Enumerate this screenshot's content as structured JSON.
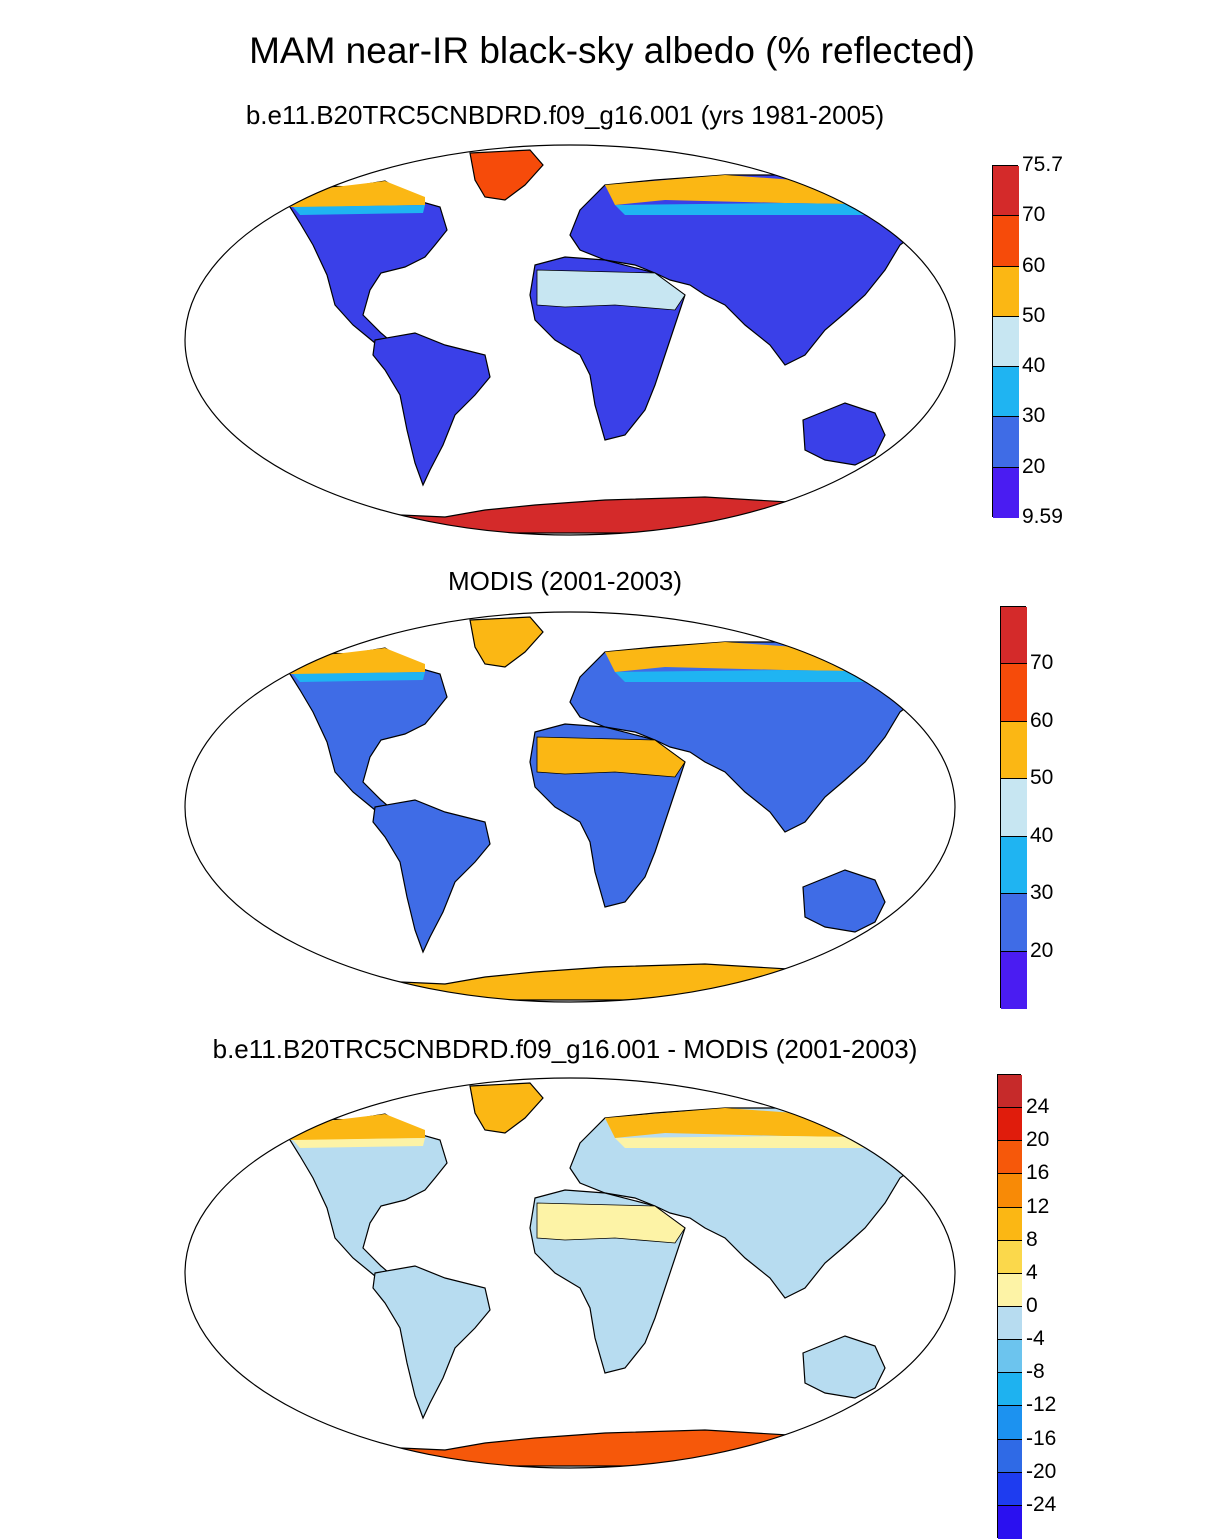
{
  "title": "MAM near-IR black-sky albedo (% reflected)",
  "panels": [
    {
      "title": "b.e11.B20TRC5CNBDRD.f09_g16.001 (yrs 1981-2005)",
      "colorbar": {
        "colors": [
          "#4a1cf2",
          "#3f6ce6",
          "#1fb4f2",
          "#c7e6f2",
          "#fbb714",
          "#f64b0a",
          "#d42a2a"
        ],
        "labels": [
          "9.59",
          "20",
          "30",
          "40",
          "50",
          "60",
          "70",
          "75.7"
        ]
      }
    },
    {
      "title": "MODIS (2001-2003)",
      "colorbar": {
        "colors": [
          "#4a1cf2",
          "#3f6ce6",
          "#1fb4f2",
          "#c7e6f2",
          "#fbb714",
          "#f64b0a",
          "#d42a2a"
        ],
        "labels": [
          "",
          "20",
          "30",
          "40",
          "50",
          "60",
          "70",
          ""
        ]
      }
    },
    {
      "title": "b.e11.B20TRC5CNBDRD.f09_g16.001 - MODIS (2001-2003)",
      "colorbar": {
        "colors": [
          "#2a10f0",
          "#1e3cf0",
          "#2f6ae6",
          "#1c92f0",
          "#1eb2f0",
          "#6cc4ee",
          "#b7dcf0",
          "#fdf3a6",
          "#fbd84b",
          "#fbb714",
          "#f88a06",
          "#f6580a",
          "#e01c0c",
          "#c62a2a"
        ],
        "labels": [
          "",
          "-24",
          "-20",
          "-16",
          "-12",
          "-8",
          "-4",
          "0",
          "4",
          "8",
          "12",
          "16",
          "20",
          "24",
          ""
        ]
      }
    }
  ],
  "regions": [
    "north-america",
    "greenland",
    "south-america",
    "europe-asia",
    "africa",
    "australia",
    "antarctica"
  ]
}
